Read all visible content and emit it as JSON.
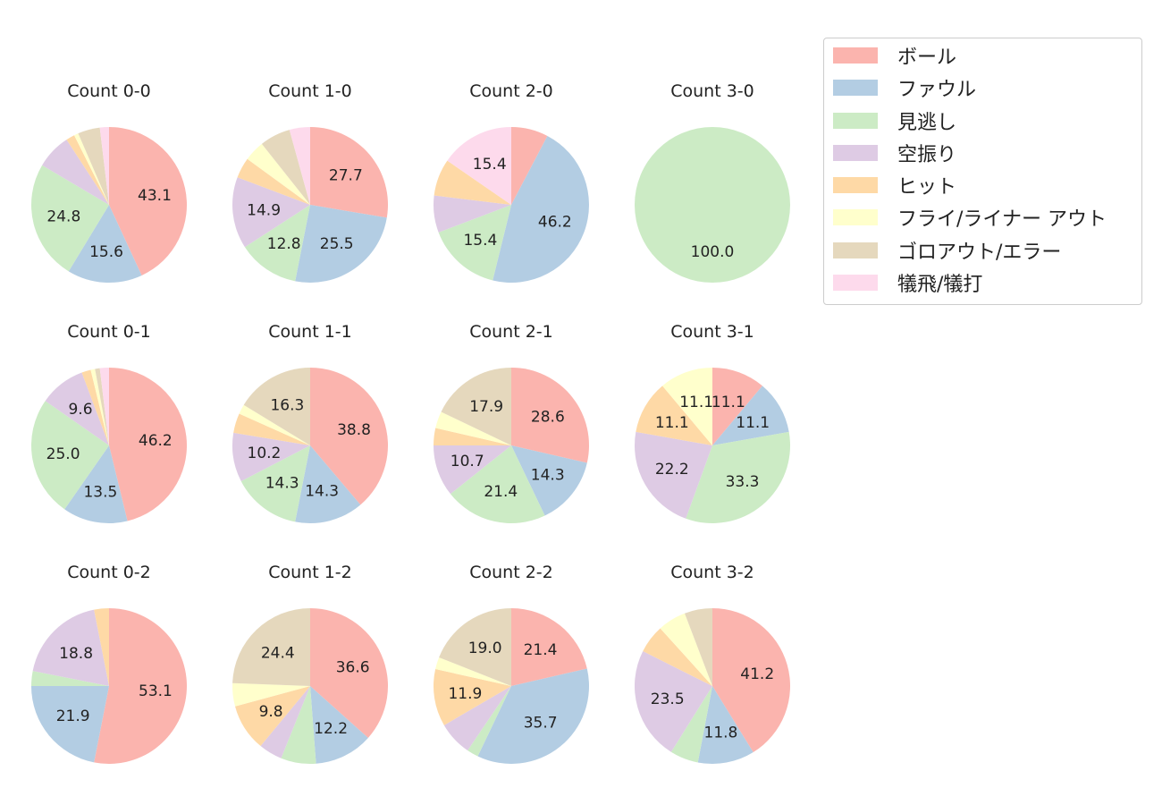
{
  "legend": {
    "items": [
      {
        "label": "ボール",
        "color": "#fbb4ae"
      },
      {
        "label": "ファウル",
        "color": "#b3cde3"
      },
      {
        "label": "見逃し",
        "color": "#ccebc5"
      },
      {
        "label": "空振り",
        "color": "#decbe4"
      },
      {
        "label": "ヒット",
        "color": "#fed9a6"
      },
      {
        "label": "フライ/ライナー アウト",
        "color": "#ffffcc"
      },
      {
        "label": "ゴロアウト/エラー",
        "color": "#e5d8bd"
      },
      {
        "label": "犠飛/犠打",
        "color": "#fddaec"
      }
    ]
  },
  "chart_data": [
    {
      "type": "pie",
      "title": "Count 0-0",
      "values": [
        43.1,
        15.6,
        24.8,
        7.3,
        1.8,
        0.9,
        4.6,
        1.9
      ],
      "labels": [
        "43.1",
        "15.6",
        "24.8",
        "",
        "",
        "",
        "",
        ""
      ]
    },
    {
      "type": "pie",
      "title": "Count 1-0",
      "values": [
        27.7,
        25.5,
        12.8,
        14.9,
        4.3,
        4.3,
        6.4,
        4.3
      ],
      "labels": [
        "27.7",
        "25.5",
        "12.8",
        "14.9",
        "",
        "",
        "",
        ""
      ]
    },
    {
      "type": "pie",
      "title": "Count 2-0",
      "values": [
        7.7,
        46.2,
        15.4,
        7.7,
        7.7,
        0,
        0,
        15.4
      ],
      "labels": [
        "",
        "46.2",
        "15.4",
        "",
        "",
        "",
        "",
        "15.4"
      ]
    },
    {
      "type": "pie",
      "title": "Count 3-0",
      "values": [
        0,
        0,
        100.0,
        0,
        0,
        0,
        0,
        0
      ],
      "labels": [
        "",
        "",
        "100.0",
        "",
        "",
        "",
        "",
        ""
      ]
    },
    {
      "type": "pie",
      "title": "Count 0-1",
      "values": [
        46.2,
        13.5,
        25.0,
        9.6,
        1.9,
        0.9,
        1.0,
        1.9
      ],
      "labels": [
        "46.2",
        "13.5",
        "25.0",
        "9.6",
        "",
        "",
        "",
        ""
      ]
    },
    {
      "type": "pie",
      "title": "Count 1-1",
      "values": [
        38.8,
        14.3,
        14.3,
        10.2,
        4.1,
        2.0,
        16.3,
        0
      ],
      "labels": [
        "38.8",
        "14.3",
        "14.3",
        "10.2",
        "",
        "",
        "16.3",
        ""
      ]
    },
    {
      "type": "pie",
      "title": "Count 2-1",
      "values": [
        28.6,
        14.3,
        21.4,
        10.7,
        3.6,
        3.5,
        17.9,
        0
      ],
      "labels": [
        "28.6",
        "14.3",
        "21.4",
        "10.7",
        "",
        "",
        "17.9",
        ""
      ]
    },
    {
      "type": "pie",
      "title": "Count 3-1",
      "values": [
        11.1,
        11.1,
        33.3,
        22.2,
        11.1,
        11.1,
        0,
        0
      ],
      "labels": [
        "11.1",
        "11.1",
        "33.3",
        "22.2",
        "11.1",
        "11.1",
        "",
        ""
      ]
    },
    {
      "type": "pie",
      "title": "Count 0-2",
      "values": [
        53.1,
        21.9,
        3.1,
        18.8,
        3.1,
        0,
        0,
        0
      ],
      "labels": [
        "53.1",
        "21.9",
        "",
        "18.8",
        "",
        "",
        "",
        ""
      ]
    },
    {
      "type": "pie",
      "title": "Count 1-2",
      "values": [
        36.6,
        12.2,
        7.3,
        4.9,
        9.8,
        4.8,
        24.4,
        0
      ],
      "labels": [
        "36.6",
        "12.2",
        "",
        "",
        "9.8",
        "",
        "24.4",
        ""
      ]
    },
    {
      "type": "pie",
      "title": "Count 2-2",
      "values": [
        21.4,
        35.7,
        2.4,
        7.1,
        11.9,
        2.5,
        19.0,
        0
      ],
      "labels": [
        "21.4",
        "35.7",
        "",
        "",
        "11.9",
        "",
        "19.0",
        ""
      ]
    },
    {
      "type": "pie",
      "title": "Count 3-2",
      "values": [
        41.2,
        11.8,
        5.9,
        23.5,
        5.9,
        5.9,
        5.8,
        0
      ],
      "labels": [
        "41.2",
        "11.8",
        "",
        "23.5",
        "",
        "",
        "",
        ""
      ]
    }
  ]
}
